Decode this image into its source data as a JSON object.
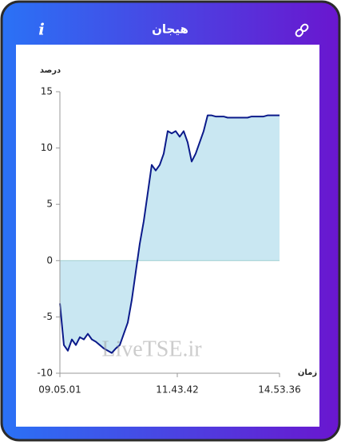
{
  "header": {
    "title": "هیجان",
    "info_icon": "i"
  },
  "chart_data": {
    "type": "area",
    "y_label": "درصد",
    "x_label": "زمان",
    "watermark": "LiveTSE.ir",
    "color": "#0b1a8a",
    "fill_color": "#c9e7f2",
    "values": [
      -3.8,
      -7.5,
      -8,
      -7,
      -7.5,
      -6.8,
      -7,
      -6.5,
      -7,
      -7.2,
      -7.5,
      -7.8,
      -8,
      -8.2,
      -7.8,
      -7.5,
      -6.5,
      -5.5,
      -3.5,
      -1,
      1.5,
      3.5,
      6,
      8.5,
      8,
      8.5,
      9.5,
      11.5,
      11.3,
      11.5,
      11,
      11.5,
      10.5,
      8.8,
      9.5,
      10.5,
      11.5,
      12.9,
      12.9,
      12.8,
      12.8,
      12.8,
      12.7,
      12.7,
      12.7,
      12.7,
      12.7,
      12.7,
      12.8,
      12.8,
      12.8,
      12.8,
      12.9,
      12.9,
      12.9,
      12.9
    ],
    "xlim": [
      0,
      55
    ],
    "xticks": [
      {
        "value": 0,
        "label": "09.05.01"
      },
      {
        "value": 29.4,
        "label": "11.43.42"
      },
      {
        "value": 55,
        "label": "14.53.36"
      }
    ],
    "ylim": [
      -10,
      15
    ],
    "yticks": [
      -10,
      -5,
      0,
      5,
      10,
      15
    ]
  }
}
